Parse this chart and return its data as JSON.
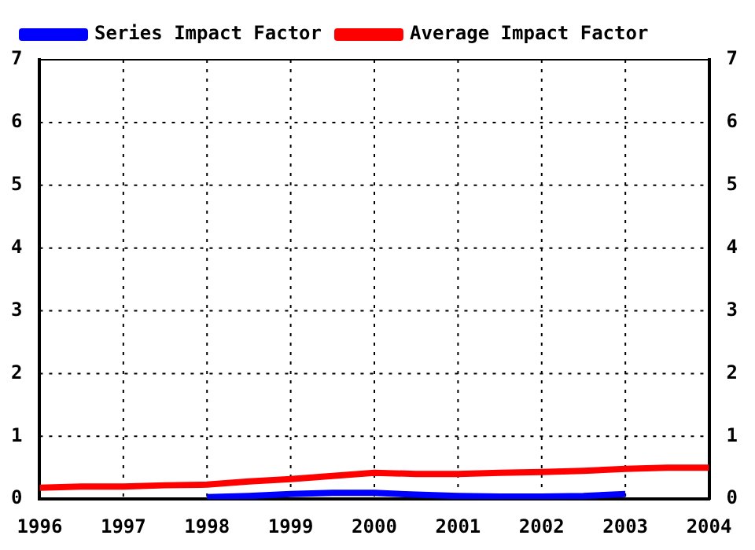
{
  "chart_data": {
    "type": "line",
    "xlim": [
      1996,
      2004
    ],
    "xticks": [
      1996,
      1997,
      1998,
      1999,
      2000,
      2001,
      2002,
      2003,
      2004
    ],
    "ylim": [
      0,
      7
    ],
    "yticks": [
      0,
      1,
      2,
      3,
      4,
      5,
      6,
      7
    ],
    "y2lim": [
      0,
      7
    ],
    "y2ticks": [
      0,
      1,
      2,
      3,
      4,
      5,
      6,
      7
    ],
    "grid": true,
    "legend": "top left",
    "marker": "none",
    "line_style": "solid",
    "series": [
      {
        "name": "Series Impact Factor",
        "color": "#0000ff",
        "x": [
          1998,
          1998.5,
          1999,
          1999.5,
          2000,
          2000.5,
          2001,
          2001.5,
          2002,
          2002.5,
          2003
        ],
        "values": [
          0.03,
          0.05,
          0.08,
          0.1,
          0.1,
          0.07,
          0.05,
          0.04,
          0.04,
          0.05,
          0.08
        ]
      },
      {
        "name": "Average Impact Factor",
        "color": "#ff0000",
        "x": [
          1996,
          1996.5,
          1997,
          1997.5,
          1998,
          1998.5,
          1999,
          1999.5,
          2000,
          2000.5,
          2001,
          2001.5,
          2002,
          2002.5,
          2003,
          2003.5,
          2004
        ],
        "values": [
          0.18,
          0.2,
          0.2,
          0.22,
          0.23,
          0.28,
          0.32,
          0.37,
          0.42,
          0.4,
          0.4,
          0.42,
          0.43,
          0.45,
          0.48,
          0.5,
          0.5
        ]
      }
    ]
  }
}
